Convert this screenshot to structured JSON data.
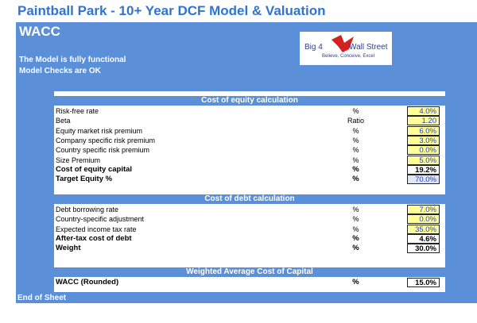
{
  "header": {
    "title": "Paintball Park - 10+ Year DCF Model & Valuation",
    "section": "WACC",
    "status": [
      "The Model is fully functional",
      "Model Checks are OK"
    ],
    "logo": {
      "left": "Big 4",
      "right": "Wall Street",
      "tagline": "Believe, Conceive, Excel"
    }
  },
  "sections": [
    {
      "title": "Cost of equity calculation",
      "rows": [
        {
          "label": "Risk-free rate",
          "unit": "%",
          "value": "4.0%",
          "kind": "input"
        },
        {
          "label": "Beta",
          "unit": "Ratio",
          "value": "1.20",
          "kind": "input"
        },
        {
          "label": "Equity market risk premium",
          "unit": "%",
          "value": "6.0%",
          "kind": "input"
        },
        {
          "label": "Company specific risk premium",
          "unit": "%",
          "value": "3.0%",
          "kind": "input"
        },
        {
          "label": "Country specific risk premium",
          "unit": "%",
          "value": "0.0%",
          "kind": "input"
        },
        {
          "label": "Size Premium",
          "unit": "%",
          "value": "5.0%",
          "kind": "input"
        },
        {
          "label": "Cost of equity capital",
          "unit": "%",
          "value": "19.2%",
          "kind": "result"
        },
        {
          "label": "Target Equity %",
          "unit": "%",
          "value": "70.0%",
          "kind": "target"
        }
      ]
    },
    {
      "title": "Cost of debt calculation",
      "rows": [
        {
          "label": "Debt borrowing rate",
          "unit": "%",
          "value": "7.0%",
          "kind": "input"
        },
        {
          "label": "Country-specific adjustment",
          "unit": "%",
          "value": "0.0%",
          "kind": "input"
        },
        {
          "label": "Expected income tax rate",
          "unit": "%",
          "value": "35.0%",
          "kind": "input"
        },
        {
          "label": "After-tax cost of debt",
          "unit": "%",
          "value": "4.6%",
          "kind": "result"
        },
        {
          "label": "Weight",
          "unit": "%",
          "value": "30.0%",
          "kind": "result"
        }
      ]
    },
    {
      "title": "Weighted Average Cost of Capital",
      "rows": [
        {
          "label": "WACC (Rounded)",
          "unit": "%",
          "value": "15.0%",
          "kind": "result"
        }
      ]
    }
  ],
  "footer": "End of Sheet"
}
